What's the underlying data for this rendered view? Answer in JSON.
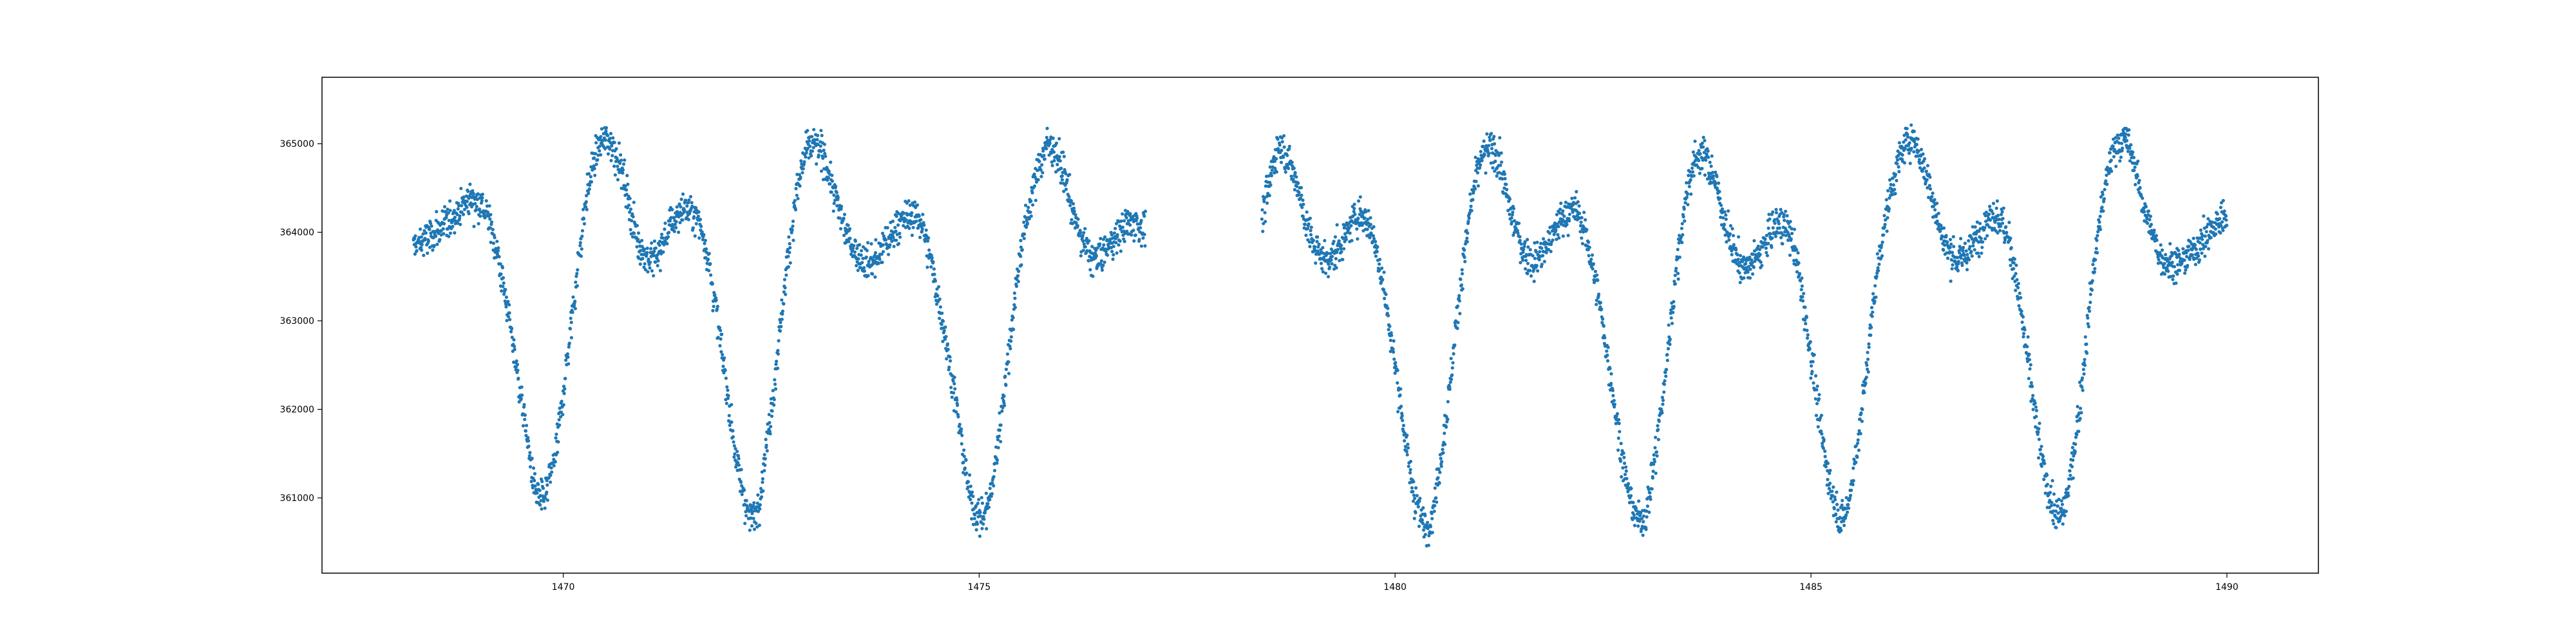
{
  "chart_data": {
    "type": "scatter",
    "title": "",
    "xlabel": "",
    "ylabel": "",
    "xlim": [
      1467.1,
      1491.1
    ],
    "ylim": [
      360150,
      365750
    ],
    "grid": false,
    "legend": "none",
    "x_ticks": [
      1470,
      1475,
      1480,
      1485,
      1490
    ],
    "x_tick_labels": [
      "1470",
      "1475",
      "1480",
      "1485",
      "1490"
    ],
    "y_ticks": [
      361000,
      362000,
      363000,
      364000,
      365000
    ],
    "y_tick_labels": [
      "361000",
      "362000",
      "363000",
      "364000",
      "365000"
    ],
    "series": [
      {
        "color": "#1f77b4",
        "marker": "dot",
        "segments": [
          {
            "x": [
              1468.2,
              1468.4,
              1468.6,
              1468.8,
              1468.9,
              1469.1,
              1469.3,
              1469.5,
              1469.7,
              1469.9,
              1470.1,
              1470.3,
              1470.5,
              1470.7,
              1470.9,
              1471.1,
              1471.3,
              1471.5,
              1471.7,
              1471.9,
              1472.1,
              1472.3,
              1472.5,
              1472.7,
              1472.9,
              1473.1,
              1473.3,
              1473.5,
              1473.7,
              1473.9,
              1474.1,
              1474.3,
              1474.5,
              1474.7,
              1474.9,
              1475.1,
              1475.3,
              1475.5,
              1475.8,
              1476.0,
              1476.2,
              1476.4,
              1476.6,
              1476.8,
              1477.0
            ],
            "y": [
              363850,
              363950,
              364100,
              364300,
              364380,
              364150,
              363300,
              362100,
              361000,
              361500,
              363000,
              364500,
              365050,
              364700,
              363900,
              363700,
              364100,
              364250,
              363900,
              362700,
              361350,
              360800,
              362000,
              363700,
              364850,
              364900,
              364300,
              363800,
              363650,
              363900,
              364150,
              364100,
              363300,
              362200,
              361000,
              360900,
              362200,
              363800,
              364950,
              364700,
              364000,
              363700,
              363900,
              364100,
              364050
            ]
          },
          {
            "x": [
              1478.4,
              1478.6,
              1478.8,
              1479.0,
              1479.2,
              1479.4,
              1479.6,
              1479.8,
              1480.0,
              1480.2,
              1480.4,
              1480.6,
              1480.8,
              1481.0,
              1481.2,
              1481.4,
              1481.6,
              1481.8,
              1482.0,
              1482.2,
              1482.4,
              1482.6,
              1482.8,
              1483.0,
              1483.2,
              1483.4,
              1483.6,
              1483.8,
              1484.0,
              1484.2,
              1484.4,
              1484.6,
              1484.8,
              1485.0,
              1485.2,
              1485.4,
              1485.6,
              1485.8,
              1486.0,
              1486.2,
              1486.4,
              1486.6,
              1486.8,
              1487.0,
              1487.2,
              1487.4,
              1487.6,
              1487.8,
              1488.0,
              1488.2,
              1488.4,
              1488.6,
              1488.8,
              1489.0,
              1489.2,
              1489.4,
              1489.6,
              1489.8,
              1490.0
            ],
            "y": [
              364200,
              364950,
              364600,
              363900,
              363700,
              363950,
              364200,
              363700,
              362500,
              361200,
              360700,
              361800,
              363500,
              364700,
              364900,
              364200,
              363700,
              363800,
              364150,
              364200,
              363500,
              362300,
              361100,
              360800,
              362000,
              363700,
              364800,
              364700,
              364000,
              363600,
              363800,
              364100,
              363800,
              362600,
              361300,
              360800,
              361900,
              363600,
              364600,
              365050,
              364600,
              363900,
              363700,
              363950,
              364200,
              363800,
              362600,
              361300,
              360800,
              361800,
              363600,
              364800,
              365000,
              364300,
              363750,
              363650,
              363800,
              364000,
              364200
            ]
          }
        ]
      }
    ]
  }
}
